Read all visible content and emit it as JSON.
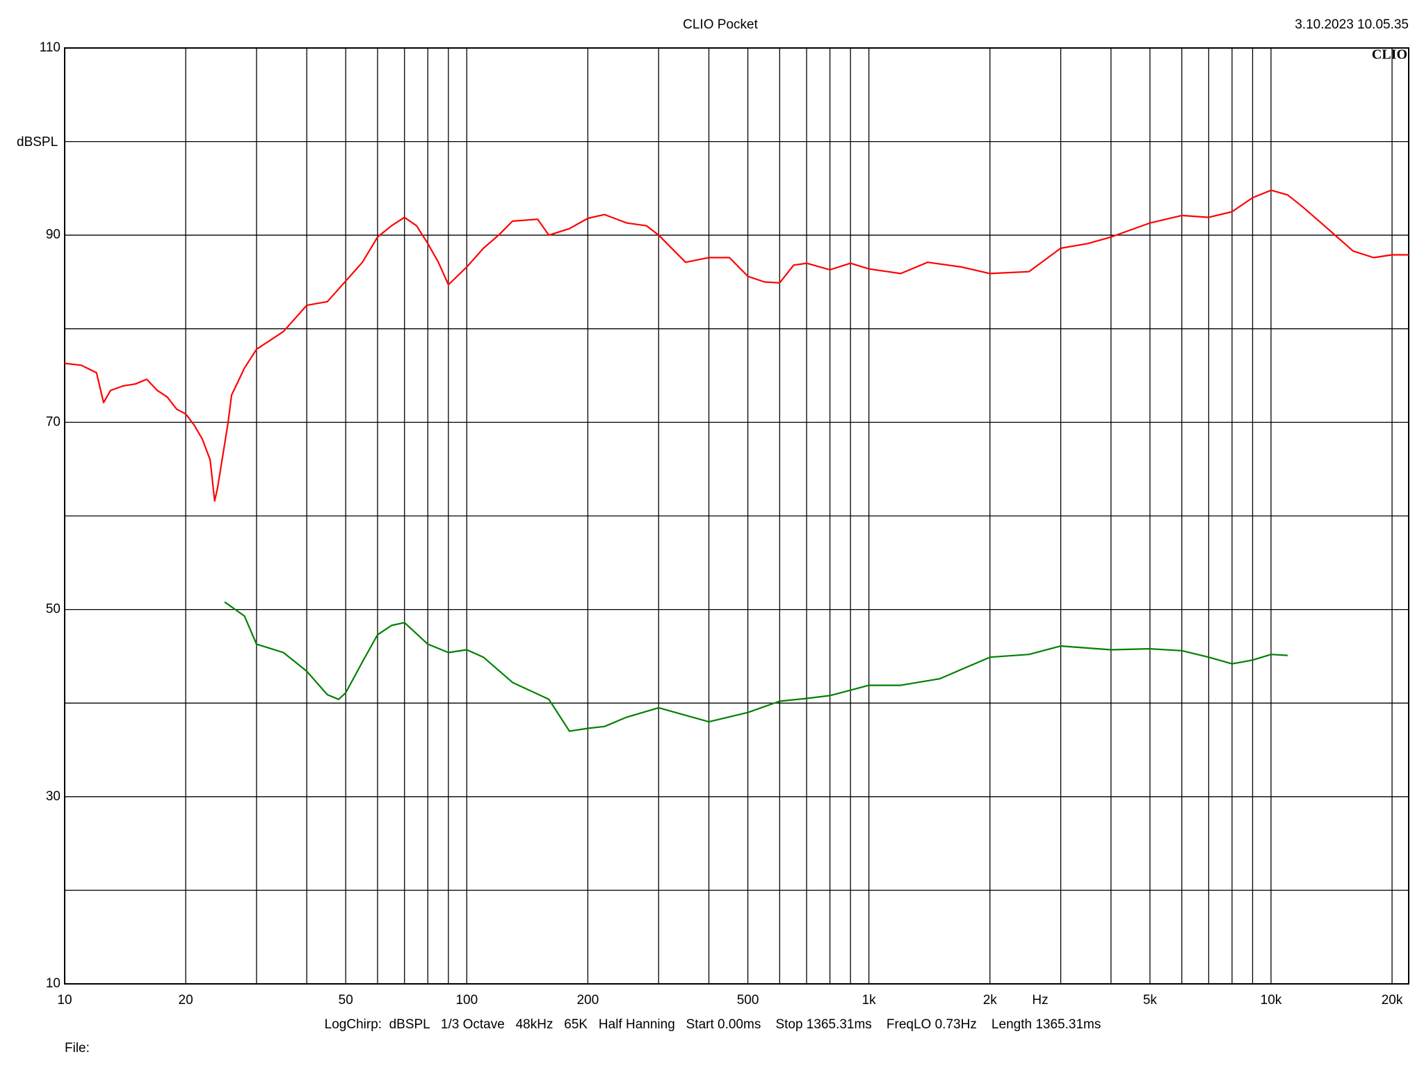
{
  "chart_data": {
    "type": "line",
    "title": "CLIO Pocket",
    "timestamp": "3.10.2023 10.05.35",
    "logo": "CLIO",
    "ylabel": "dBSPL",
    "xlabel": "Hz",
    "settings_line": "LogChirp:  dBSPL   1/3 Octave   48kHz   65K   Half Hanning   Start 0.00ms    Stop 1365.31ms    FreqLO 0.73Hz    Length 1365.31ms",
    "file_label": "File:",
    "xscale": "log",
    "xlim": [
      10,
      22000
    ],
    "ylim": [
      10,
      110
    ],
    "xticks": [
      10,
      20,
      50,
      100,
      200,
      500,
      {
        "value": 1000,
        "label": "1k"
      },
      {
        "value": 2000,
        "label": "2k"
      },
      {
        "value": 5000,
        "label": "5k"
      },
      {
        "value": 10000,
        "label": "10k"
      },
      {
        "value": 20000,
        "label": "20k"
      }
    ],
    "xminor": [
      30,
      40,
      60,
      70,
      80,
      90,
      300,
      400,
      600,
      700,
      800,
      900,
      3000,
      4000,
      6000,
      7000,
      8000,
      9000
    ],
    "yticks": [
      10,
      30,
      50,
      70,
      90,
      110
    ],
    "yminor": [
      20,
      40,
      60,
      80,
      100
    ],
    "grid": true,
    "series": [
      {
        "color": "#ff0000",
        "x": [
          10,
          11,
          12,
          12.5,
          13,
          14,
          15,
          16,
          17,
          18,
          19,
          20,
          21,
          22,
          23,
          23.6,
          24,
          25.5,
          26,
          28,
          30,
          35,
          40,
          45,
          50,
          55,
          60,
          65,
          70,
          75,
          80,
          85,
          90,
          100,
          110,
          120,
          130,
          150,
          160,
          180,
          200,
          220,
          250,
          280,
          300,
          350,
          400,
          450,
          500,
          550,
          600,
          650,
          700,
          800,
          900,
          1000,
          1200,
          1400,
          1700,
          2000,
          2500,
          3000,
          3500,
          4000,
          5000,
          6000,
          7000,
          8000,
          9000,
          10000,
          11000,
          12000,
          14000,
          16000,
          18000,
          20000,
          22000
        ],
        "values": [
          76.3,
          76.1,
          75.3,
          72.1,
          73.4,
          73.9,
          74.1,
          74.6,
          73.4,
          72.7,
          71.4,
          70.9,
          69.7,
          68.2,
          66,
          61.6,
          63,
          70,
          72.9,
          75.8,
          77.8,
          79.7,
          82.5,
          82.9,
          85.1,
          87.1,
          89.8,
          91.0,
          91.9,
          91.0,
          89.1,
          87.1,
          84.7,
          86.6,
          88.6,
          90.0,
          91.5,
          91.7,
          90.0,
          90.7,
          91.8,
          92.2,
          91.3,
          91.0,
          90.0,
          87.1,
          87.6,
          87.6,
          85.6,
          85.0,
          84.9,
          86.8,
          87.0,
          86.3,
          87.0,
          86.4,
          85.9,
          87.1,
          86.6,
          85.9,
          86.1,
          88.6,
          89.1,
          89.8,
          91.3,
          92.1,
          91.9,
          92.5,
          94.0,
          94.8,
          94.3,
          93.0,
          90.5,
          88.3,
          87.6,
          87.9,
          87.9
        ]
      },
      {
        "color": "#008000",
        "x": [
          25,
          28,
          30,
          35,
          40,
          45,
          48,
          50,
          55,
          60,
          65,
          70,
          80,
          90,
          100,
          110,
          130,
          160,
          180,
          200,
          220,
          250,
          300,
          400,
          500,
          600,
          700,
          800,
          1000,
          1200,
          1500,
          2000,
          2500,
          3000,
          4000,
          5000,
          6000,
          7000,
          8000,
          9000,
          10000,
          11000
        ],
        "values": [
          50.8,
          49.3,
          46.3,
          45.4,
          43.4,
          40.9,
          40.4,
          41.1,
          44.4,
          47.3,
          48.3,
          48.6,
          46.3,
          45.4,
          45.7,
          44.9,
          42.2,
          40.4,
          37.0,
          37.3,
          37.5,
          38.5,
          39.5,
          38.0,
          39.0,
          40.2,
          40.5,
          40.8,
          41.9,
          41.9,
          42.6,
          44.9,
          45.2,
          46.1,
          45.7,
          45.8,
          45.6,
          44.9,
          44.2,
          44.6,
          45.2,
          45.1
        ]
      }
    ]
  }
}
